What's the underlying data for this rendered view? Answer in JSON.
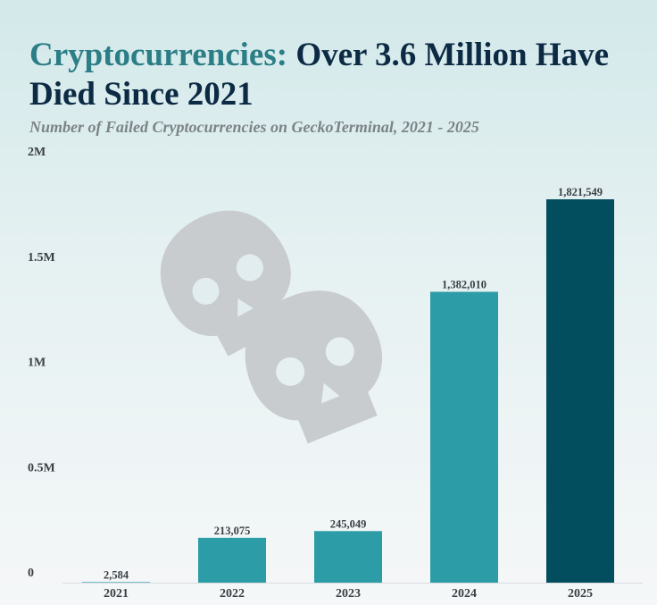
{
  "header": {
    "title_accent": "Cryptocurrencies:",
    "title_rest": " Over 3.6 Million Have Died Since 2021",
    "subtitle": "Number of Failed Cryptocurrencies on GeckoTerminal, 2021 - 2025"
  },
  "decoration": {
    "icon": "skull-icon",
    "color": "#c9ccce"
  },
  "chart_data": {
    "type": "bar",
    "categories": [
      "2021",
      "2022",
      "2023",
      "2024",
      "2025"
    ],
    "values": [
      2584,
      213075,
      245049,
      1382010,
      1821549
    ],
    "value_labels": [
      "2,584",
      "213,075",
      "245,049",
      "1,382,010",
      "1,821,549"
    ],
    "colors": [
      "#2c9da6",
      "#2c9da6",
      "#2c9da6",
      "#2c9da6",
      "#034e5e"
    ],
    "ylim": [
      0,
      2000000
    ],
    "yticks": [
      0,
      500000,
      1000000,
      1500000,
      2000000
    ],
    "ytick_labels": [
      "0",
      "0.5M",
      "1M",
      "1.5M",
      "2M"
    ],
    "grid": false,
    "legend": false
  }
}
